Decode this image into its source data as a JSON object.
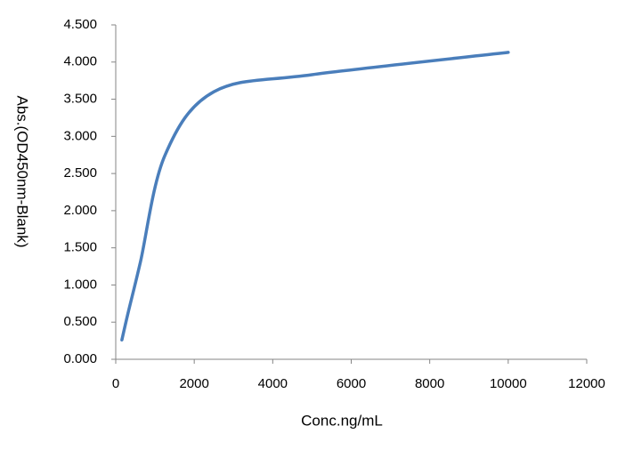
{
  "chart_data": {
    "type": "line",
    "x_label": "Conc.ng/mL",
    "y_label": "Abs.(OD450nm-Blank)",
    "x": [
      156.25,
      312.5,
      625,
      1250,
      2500,
      5000,
      10000
    ],
    "series": [
      {
        "color": "#4a7ebb",
        "values": [
          0.26,
          0.62,
          1.3,
          2.74,
          3.6,
          3.83,
          4.13
        ]
      }
    ],
    "smooth": true,
    "xlim": [
      0,
      12000
    ],
    "xticks": [
      0,
      2000,
      4000,
      6000,
      8000,
      10000,
      12000
    ],
    "ylim": [
      0,
      4.5
    ],
    "yticks": [
      {
        "value": 0,
        "label": "0.000"
      },
      {
        "value": 0.5,
        "label": "0.500"
      },
      {
        "value": 1,
        "label": "1.000"
      },
      {
        "value": 1.5,
        "label": "1.500"
      },
      {
        "value": 2,
        "label": "2.000"
      },
      {
        "value": 2.5,
        "label": "2.500"
      },
      {
        "value": 3,
        "label": "3.000"
      },
      {
        "value": 3.5,
        "label": "3.500"
      },
      {
        "value": 4,
        "label": "4.000"
      },
      {
        "value": 4.5,
        "label": "4.500"
      }
    ],
    "grid": false
  }
}
